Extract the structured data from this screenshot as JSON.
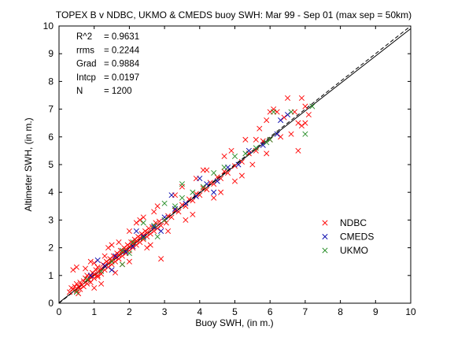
{
  "chart_data": {
    "type": "scatter",
    "title": "TOPEX B v NDBC, UKMO & CMEDS buoy SWH: Mar 99 - Sep 01 (max sep = 50km)",
    "xlabel": "Buoy SWH, (in m.)",
    "ylabel": "Altimeter SWH, (in m.)",
    "xlim": [
      0,
      10
    ],
    "ylim": [
      0,
      10
    ],
    "x_ticks": [
      "0",
      "1",
      "2",
      "3",
      "4",
      "5",
      "6",
      "7",
      "8",
      "9",
      "10"
    ],
    "y_ticks": [
      "0",
      "1",
      "2",
      "3",
      "4",
      "5",
      "6",
      "7",
      "8",
      "9",
      "10"
    ],
    "grid": false,
    "legend_position": "lower-right",
    "stats": [
      {
        "label": "R^2",
        "value": "= 0.9631"
      },
      {
        "label": "rrms",
        "value": "= 0.2244"
      },
      {
        "label": "Grad",
        "value": "= 0.9884"
      },
      {
        "label": "Intcp",
        "value": "= 0.0197"
      },
      {
        "label": "N",
        "value": "= 1200"
      }
    ],
    "lines": [
      {
        "style": "dashed",
        "slope": 1,
        "intercept": 0
      },
      {
        "style": "solid",
        "slope": 0.9884,
        "intercept": 0.0197
      }
    ],
    "series": [
      {
        "name": "NDBC",
        "color": "#ff0000",
        "marker": "x",
        "points": [
          [
            0.3,
            0.4
          ],
          [
            0.35,
            0.55
          ],
          [
            0.4,
            0.5
          ],
          [
            0.45,
            0.6
          ],
          [
            0.5,
            0.45
          ],
          [
            0.5,
            0.7
          ],
          [
            0.55,
            0.6
          ],
          [
            0.6,
            0.75
          ],
          [
            0.6,
            0.5
          ],
          [
            0.65,
            0.65
          ],
          [
            0.7,
            0.8
          ],
          [
            0.7,
            0.6
          ],
          [
            0.75,
            0.9
          ],
          [
            0.8,
            0.7
          ],
          [
            0.8,
            1.0
          ],
          [
            0.85,
            0.85
          ],
          [
            0.9,
            0.95
          ],
          [
            0.9,
            0.75
          ],
          [
            0.95,
            1.1
          ],
          [
            1.0,
            0.9
          ],
          [
            1.0,
            1.05
          ],
          [
            1.05,
            1.2
          ],
          [
            1.1,
            1.0
          ],
          [
            1.1,
            1.3
          ],
          [
            1.15,
            1.15
          ],
          [
            1.2,
            1.25
          ],
          [
            1.2,
            1.05
          ],
          [
            1.25,
            1.4
          ],
          [
            1.3,
            1.2
          ],
          [
            1.3,
            1.35
          ],
          [
            1.35,
            1.5
          ],
          [
            1.4,
            1.3
          ],
          [
            1.4,
            1.45
          ],
          [
            1.45,
            1.6
          ],
          [
            1.5,
            1.4
          ],
          [
            1.5,
            1.55
          ],
          [
            1.55,
            1.7
          ],
          [
            1.6,
            1.5
          ],
          [
            1.6,
            1.65
          ],
          [
            1.65,
            1.8
          ],
          [
            1.7,
            1.6
          ],
          [
            1.7,
            1.75
          ],
          [
            1.75,
            1.9
          ],
          [
            1.8,
            1.7
          ],
          [
            1.8,
            1.85
          ],
          [
            1.85,
            2.0
          ],
          [
            1.9,
            1.8
          ],
          [
            1.9,
            1.95
          ],
          [
            1.95,
            2.1
          ],
          [
            2.0,
            1.9
          ],
          [
            2.0,
            2.05
          ],
          [
            2.05,
            2.2
          ],
          [
            2.1,
            2.0
          ],
          [
            2.1,
            2.15
          ],
          [
            2.15,
            2.3
          ],
          [
            2.2,
            2.1
          ],
          [
            2.2,
            2.25
          ],
          [
            2.25,
            2.4
          ],
          [
            2.3,
            2.2
          ],
          [
            2.3,
            2.35
          ],
          [
            2.35,
            2.5
          ],
          [
            2.4,
            2.3
          ],
          [
            2.4,
            2.45
          ],
          [
            2.45,
            2.6
          ],
          [
            2.5,
            2.4
          ],
          [
            2.5,
            2.55
          ],
          [
            2.55,
            2.7
          ],
          [
            2.6,
            2.5
          ],
          [
            2.65,
            2.75
          ],
          [
            2.7,
            2.6
          ],
          [
            2.75,
            2.9
          ],
          [
            2.8,
            2.7
          ],
          [
            2.85,
            2.95
          ],
          [
            2.9,
            2.8
          ],
          [
            3.0,
            3.0
          ],
          [
            3.05,
            2.9
          ],
          [
            3.1,
            3.15
          ],
          [
            3.2,
            3.1
          ],
          [
            3.3,
            3.35
          ],
          [
            3.4,
            3.3
          ],
          [
            3.5,
            3.55
          ],
          [
            3.6,
            3.5
          ],
          [
            3.7,
            3.75
          ],
          [
            3.8,
            3.7
          ],
          [
            3.9,
            3.95
          ],
          [
            4.0,
            3.9
          ],
          [
            4.1,
            4.15
          ],
          [
            4.2,
            4.1
          ],
          [
            4.3,
            4.35
          ],
          [
            4.4,
            4.3
          ],
          [
            4.5,
            4.55
          ],
          [
            4.6,
            4.5
          ],
          [
            4.7,
            4.75
          ],
          [
            4.8,
            4.7
          ],
          [
            5.0,
            4.95
          ],
          [
            5.2,
            5.1
          ],
          [
            5.4,
            5.4
          ],
          [
            5.6,
            5.5
          ],
          [
            5.8,
            5.85
          ],
          [
            6.0,
            5.9
          ],
          [
            0.4,
            1.2
          ],
          [
            0.5,
            1.3
          ],
          [
            0.55,
            0.35
          ],
          [
            0.9,
            1.5
          ],
          [
            1.2,
            0.7
          ],
          [
            1.0,
            1.45
          ],
          [
            1.5,
            2.1
          ],
          [
            1.8,
            1.4
          ],
          [
            2.2,
            2.9
          ],
          [
            2.5,
            2.0
          ],
          [
            1.7,
            2.2
          ],
          [
            2.0,
            1.5
          ],
          [
            2.3,
            3.0
          ],
          [
            2.6,
            2.1
          ],
          [
            2.8,
            3.5
          ],
          [
            2.9,
            1.6
          ],
          [
            1.4,
            2.0
          ],
          [
            1.6,
            1.1
          ],
          [
            3.1,
            2.6
          ],
          [
            2.4,
            3.1
          ],
          [
            3.5,
            4.2
          ],
          [
            3.8,
            3.2
          ],
          [
            4.1,
            4.8
          ],
          [
            4.4,
            3.8
          ],
          [
            4.7,
            5.3
          ],
          [
            5.0,
            4.4
          ],
          [
            5.3,
            5.9
          ],
          [
            5.5,
            5.0
          ],
          [
            5.2,
            4.6
          ],
          [
            4.6,
            4.0
          ],
          [
            3.9,
            4.5
          ],
          [
            3.3,
            3.9
          ],
          [
            2.7,
            3.3
          ],
          [
            3.6,
            3.0
          ],
          [
            4.2,
            4.8
          ],
          [
            4.9,
            5.5
          ],
          [
            5.7,
            6.3
          ],
          [
            5.9,
            5.4
          ],
          [
            6.0,
            6.9
          ],
          [
            6.5,
            7.4
          ],
          [
            6.7,
            6.9
          ],
          [
            6.9,
            7.4
          ],
          [
            6.8,
            6.5
          ],
          [
            7.1,
            6.8
          ],
          [
            7.0,
            6.5
          ],
          [
            6.3,
            6.0
          ],
          [
            6.4,
            6.7
          ],
          [
            6.2,
            6.9
          ],
          [
            6.1,
            7.0
          ],
          [
            6.6,
            6.1
          ],
          [
            7.0,
            7.1
          ],
          [
            6.9,
            6.4
          ],
          [
            6.8,
            5.5
          ],
          [
            5.6,
            5.9
          ],
          [
            5.9,
            6.6
          ],
          [
            1.0,
            0.55
          ],
          [
            1.3,
            1.7
          ],
          [
            1.1,
            0.95
          ],
          [
            0.75,
            1.25
          ],
          [
            2.0,
            2.6
          ]
        ]
      },
      {
        "name": "CMEDS",
        "color": "#0000aa",
        "marker": "x",
        "points": [
          [
            0.9,
            1.0
          ],
          [
            1.1,
            1.55
          ],
          [
            1.3,
            1.35
          ],
          [
            1.6,
            1.7
          ],
          [
            1.9,
            1.85
          ],
          [
            2.1,
            2.05
          ],
          [
            2.4,
            2.4
          ],
          [
            2.7,
            2.75
          ],
          [
            3.0,
            3.1
          ],
          [
            3.3,
            3.4
          ],
          [
            3.6,
            3.6
          ],
          [
            3.9,
            3.85
          ],
          [
            4.2,
            4.3
          ],
          [
            4.5,
            4.4
          ],
          [
            4.8,
            4.9
          ],
          [
            5.1,
            5.0
          ],
          [
            5.4,
            5.5
          ],
          [
            5.8,
            5.7
          ],
          [
            6.2,
            6.1
          ],
          [
            6.3,
            6.6
          ],
          [
            6.5,
            6.8
          ],
          [
            3.2,
            3.9
          ],
          [
            2.9,
            2.6
          ],
          [
            4.0,
            4.5
          ],
          [
            1.5,
            1.2
          ],
          [
            2.2,
            2.6
          ],
          [
            4.4,
            4.0
          ]
        ]
      },
      {
        "name": "UKMO",
        "color": "#228b22",
        "marker": "x",
        "points": [
          [
            0.5,
            0.4
          ],
          [
            0.8,
            0.85
          ],
          [
            1.2,
            1.15
          ],
          [
            1.5,
            1.5
          ],
          [
            1.8,
            1.9
          ],
          [
            2.1,
            2.2
          ],
          [
            2.4,
            2.35
          ],
          [
            2.7,
            2.8
          ],
          [
            3.0,
            3.0
          ],
          [
            3.3,
            3.5
          ],
          [
            3.5,
            3.8
          ],
          [
            3.8,
            4.0
          ],
          [
            4.1,
            4.2
          ],
          [
            4.4,
            4.7
          ],
          [
            4.7,
            4.9
          ],
          [
            5.0,
            5.3
          ],
          [
            5.3,
            5.4
          ],
          [
            5.6,
            5.6
          ],
          [
            5.9,
            5.8
          ],
          [
            6.1,
            6.9
          ],
          [
            6.6,
            6.9
          ],
          [
            7.0,
            6.1
          ],
          [
            7.2,
            7.1
          ],
          [
            6.0,
            5.9
          ],
          [
            3.5,
            4.3
          ],
          [
            3.0,
            3.6
          ],
          [
            2.4,
            2.9
          ],
          [
            1.8,
            1.4
          ],
          [
            2.0,
            1.8
          ],
          [
            2.8,
            2.4
          ]
        ]
      }
    ]
  }
}
